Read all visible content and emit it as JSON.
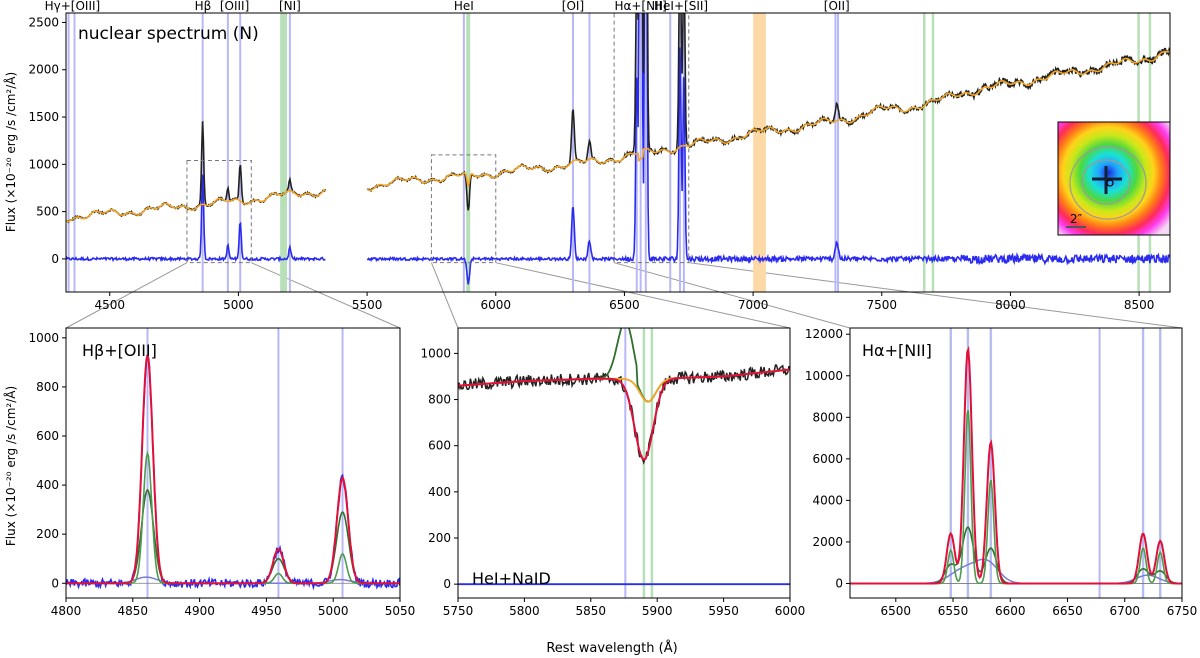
{
  "figure": {
    "y_axis_label": "Flux (×10⁻²⁰ erg /s /cm²/Å)",
    "x_axis_label": "Rest wavelength (Å)"
  },
  "colors": {
    "observed": "#222222",
    "stellar_model": "#f5a623",
    "residual": "#2b2bf0",
    "total_fit": "#e0103a",
    "narrow": "#4e9a4e",
    "broad": "#2f6f2f",
    "blue_line": "#b8b8f8",
    "green_line": "#b8e0b8",
    "masked_band": "#fdd9a8"
  },
  "inset": {
    "scale_label": "2″"
  },
  "chart_data": [
    {
      "id": "nuclear",
      "type": "line",
      "title": "nuclear spectrum (N)",
      "xlim": [
        4330,
        8620
      ],
      "ylim": [
        -350,
        2600
      ],
      "xticks": [
        4500,
        5000,
        5500,
        6000,
        6500,
        7000,
        7500,
        8000,
        8500
      ],
      "yticks": [
        0,
        500,
        1000,
        1500,
        2000,
        2500
      ],
      "gap": [
        5340,
        5500
      ],
      "line_labels": [
        {
          "text": "Hγ+[OIII]",
          "x": 4355
        },
        {
          "text": "Hβ",
          "x": 4862
        },
        {
          "text": "[OIII]",
          "x": 4985
        },
        {
          "text": "[NI]",
          "x": 5200
        },
        {
          "text": "HeI",
          "x": 5876
        },
        {
          "text": "[OI]",
          "x": 6300
        },
        {
          "text": "Hα+[NII]",
          "x": 6563
        },
        {
          "text": "HeI+[SII]",
          "x": 6720
        },
        {
          "text": "[OII]",
          "x": 7325
        }
      ],
      "blue_lines": [
        4340,
        4363,
        4861,
        4959,
        5007,
        5200,
        5876,
        6300,
        6364,
        6548,
        6563,
        6583,
        6678,
        6716,
        6731,
        7320,
        7330
      ],
      "green_lines": [
        5167,
        5175,
        5184,
        5890,
        5896,
        7665,
        7699,
        8498,
        8542
      ],
      "masked_band": [
        7000,
        7050
      ],
      "zoom_boxes": [
        {
          "x": [
            4800,
            5050
          ],
          "y": [
            -40,
            1040
          ]
        },
        {
          "x": [
            5750,
            6000
          ],
          "y": [
            -40,
            1100
          ]
        },
        {
          "x": [
            6460,
            6750
          ],
          "y": [
            -40,
            2600
          ]
        }
      ],
      "continuum_knots": {
        "x": [
          4330,
          4500,
          4800,
          5000,
          5200,
          5340,
          5500,
          5700,
          5900,
          6100,
          6300,
          6500,
          6700,
          6900,
          7000,
          7200,
          7400,
          7500,
          7600,
          7700,
          7800,
          8000,
          8200,
          8400,
          8500,
          8620
        ],
        "y": [
          440,
          480,
          560,
          610,
          680,
          720,
          770,
          840,
          880,
          940,
          1000,
          1080,
          1180,
          1270,
          1330,
          1400,
          1500,
          1580,
          1600,
          1650,
          1750,
          1850,
          1950,
          2050,
          2100,
          2200
        ]
      },
      "emission_lines": [
        {
          "x": 4861,
          "amp": 880,
          "sigma": 4
        },
        {
          "x": 4959,
          "amp": 140,
          "sigma": 4
        },
        {
          "x": 5007,
          "amp": 400,
          "sigma": 4
        },
        {
          "x": 5200,
          "amp": 120,
          "sigma": 4
        },
        {
          "x": 6300,
          "amp": 560,
          "sigma": 5
        },
        {
          "x": 6364,
          "amp": 200,
          "sigma": 5
        },
        {
          "x": 6548,
          "amp": 2000,
          "sigma": 4
        },
        {
          "x": 6563,
          "amp": 11000,
          "sigma": 4
        },
        {
          "x": 6583,
          "amp": 6800,
          "sigma": 4
        },
        {
          "x": 6716,
          "amp": 2300,
          "sigma": 4
        },
        {
          "x": 6731,
          "amp": 2000,
          "sigma": 4
        },
        {
          "x": 7325,
          "amp": 180,
          "sigma": 6
        }
      ],
      "absorption_lines": [
        {
          "x": 5893,
          "amp": 420,
          "sigma": 5
        }
      ]
    },
    {
      "id": "hbeta",
      "type": "line",
      "title": "Hβ+[OIII]",
      "xlim": [
        4800,
        5050
      ],
      "ylim": [
        -60,
        1040
      ],
      "xticks": [
        4800,
        4850,
        4900,
        4950,
        5000,
        5050
      ],
      "yticks": [
        0,
        200,
        400,
        600,
        800,
        1000
      ],
      "blue_lines": [
        4861,
        4959,
        5007
      ],
      "green_lines": [],
      "components": {
        "total_fit": [
          {
            "x": 4861,
            "amp": 930,
            "sigma": 4
          },
          {
            "x": 4959,
            "amp": 140,
            "sigma": 4
          },
          {
            "x": 5007,
            "amp": 430,
            "sigma": 4.2
          }
        ],
        "narrow": [
          {
            "x": 4861,
            "amp": 530,
            "sigma": 3.2
          },
          {
            "x": 4959,
            "amp": 40,
            "sigma": 3
          },
          {
            "x": 5007,
            "amp": 120,
            "sigma": 3
          }
        ],
        "broad": [
          {
            "x": 4861,
            "amp": 380,
            "sigma": 4.5
          },
          {
            "x": 4959,
            "amp": 100,
            "sigma": 4.5
          },
          {
            "x": 5007,
            "amp": 290,
            "sigma": 4.5
          }
        ],
        "outflow": [
          {
            "x": 4860,
            "amp": 25,
            "sigma": 8
          },
          {
            "x": 5005,
            "amp": 15,
            "sigma": 8
          }
        ]
      }
    },
    {
      "id": "hei_naid",
      "type": "line",
      "title": "HeI+NaID",
      "xlim": [
        5750,
        6000
      ],
      "ylim": [
        -60,
        1110
      ],
      "xticks": [
        5750,
        5800,
        5850,
        5900,
        5950,
        6000
      ],
      "yticks": [
        0,
        200,
        400,
        600,
        800,
        1000
      ],
      "blue_lines": [
        5876
      ],
      "green_lines": [
        5890,
        5896
      ],
      "continuum": {
        "x": [
          5750,
          5800,
          5850,
          5900,
          5950,
          6000
        ],
        "y": [
          860,
          880,
          890,
          890,
          900,
          930
        ]
      },
      "components": {
        "absorption": [
          {
            "x": 5890,
            "amp": 350,
            "sigma": 7
          }
        ],
        "stellar_dip": [
          {
            "x": 5893,
            "amp": 100,
            "sigma": 6
          }
        ],
        "emission_bump": [
          {
            "x": 5876,
            "amp": 250,
            "sigma": 6
          }
        ]
      }
    },
    {
      "id": "halpha",
      "type": "line",
      "title": "Hα+[NII]",
      "xlim": [
        6460,
        6750
      ],
      "ylim": [
        -700,
        12300
      ],
      "xticks": [
        6500,
        6550,
        6600,
        6650,
        6700,
        6750
      ],
      "yticks": [
        0,
        2000,
        4000,
        6000,
        8000,
        10000,
        12000
      ],
      "blue_lines": [
        6548,
        6563,
        6583,
        6678,
        6716,
        6731
      ],
      "green_lines": [
        6548,
        6563,
        6583,
        6716,
        6731
      ],
      "components": {
        "total_fit": [
          {
            "x": 6548,
            "amp": 2400,
            "sigma": 3.5
          },
          {
            "x": 6563,
            "amp": 11300,
            "sigma": 3.5
          },
          {
            "x": 6583,
            "amp": 6800,
            "sigma": 3.5
          },
          {
            "x": 6716,
            "amp": 2400,
            "sigma": 3.5
          },
          {
            "x": 6731,
            "amp": 2050,
            "sigma": 3.5
          }
        ],
        "narrow": [
          {
            "x": 6548,
            "amp": 1600,
            "sigma": 2.6
          },
          {
            "x": 6563,
            "amp": 8400,
            "sigma": 2.6
          },
          {
            "x": 6583,
            "amp": 5000,
            "sigma": 2.6
          },
          {
            "x": 6716,
            "amp": 1700,
            "sigma": 2.6
          },
          {
            "x": 6731,
            "amp": 1500,
            "sigma": 2.6
          }
        ],
        "broad": [
          {
            "x": 6548,
            "amp": 900,
            "sigma": 5
          },
          {
            "x": 6563,
            "amp": 2700,
            "sigma": 5
          },
          {
            "x": 6583,
            "amp": 1700,
            "sigma": 5
          },
          {
            "x": 6716,
            "amp": 700,
            "sigma": 5
          },
          {
            "x": 6731,
            "amp": 600,
            "sigma": 5
          }
        ],
        "outflow": [
          {
            "x": 6560,
            "amp": 700,
            "sigma": 12
          },
          {
            "x": 6580,
            "amp": 950,
            "sigma": 10
          },
          {
            "x": 6720,
            "amp": 400,
            "sigma": 10
          }
        ]
      }
    }
  ]
}
